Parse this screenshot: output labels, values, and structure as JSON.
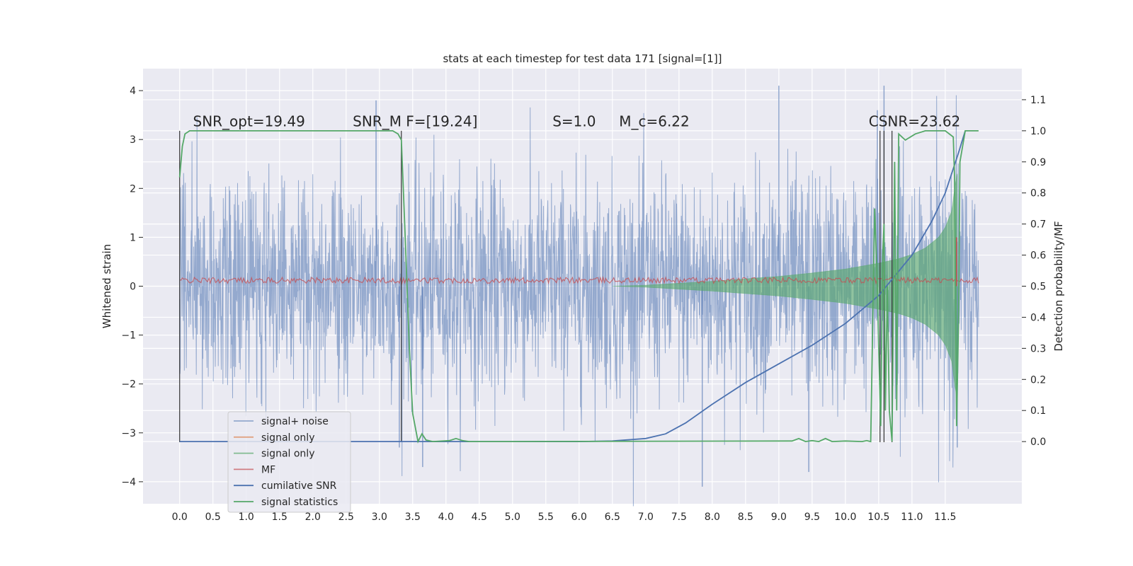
{
  "chart_data": {
    "type": "line",
    "title": "stats at each timestep for test data 171 [signal=[1]]",
    "xlabel": "",
    "ylabel": "Whitened strain",
    "y2label": "Detection probability/MF",
    "xlim": [
      -0.55,
      12.65
    ],
    "ylim": [
      -4.45,
      4.45
    ],
    "y2lim": [
      -0.2,
      1.2
    ],
    "xticks": [
      0.0,
      0.5,
      1.0,
      1.5,
      2.0,
      2.5,
      3.0,
      3.5,
      4.0,
      4.5,
      5.0,
      5.5,
      6.0,
      6.5,
      7.0,
      7.5,
      8.0,
      8.5,
      9.0,
      9.5,
      10.0,
      10.5,
      11.0,
      11.5
    ],
    "xtick_labels": [
      "0.0",
      "0.5",
      "1.0",
      "1.5",
      "2.0",
      "2.5",
      "3.0",
      "3.5",
      "4.0",
      "4.5",
      "5.0",
      "5.5",
      "6.0",
      "6.5",
      "7.0",
      "7.5",
      "8.0",
      "8.5",
      "9.0",
      "9.5",
      "10.0",
      "10.5",
      "11.0",
      "11.5"
    ],
    "yticks": [
      -4,
      -3,
      -2,
      -1,
      0,
      1,
      2,
      3,
      4
    ],
    "ytick_labels": [
      "−4",
      "−3",
      "−2",
      "−1",
      "0",
      "1",
      "2",
      "3",
      "4"
    ],
    "y2ticks": [
      0.0,
      0.1,
      0.2,
      0.3,
      0.4,
      0.5,
      0.6,
      0.7,
      0.8,
      0.9,
      1.0,
      1.1
    ],
    "y2tick_labels": [
      "0.0",
      "0.1",
      "0.2",
      "0.3",
      "0.4",
      "0.5",
      "0.6",
      "0.7",
      "0.8",
      "0.9",
      "1.0",
      "1.1"
    ],
    "grid": true,
    "legend_position": "lower-left",
    "annotations": [
      {
        "text": "SNR_opt=19.49",
        "x": 0.2,
        "y2": 1.015
      },
      {
        "text": "SNR_M F=[19.24]",
        "x": 2.6,
        "y2": 1.015
      },
      {
        "text": "S=1.0",
        "x": 5.6,
        "y2": 1.015
      },
      {
        "text": "M_c=6.22",
        "x": 6.6,
        "y2": 1.015
      },
      {
        "text": "CSNR=23.62",
        "x": 10.35,
        "y2": 1.015
      }
    ],
    "legend": [
      {
        "label": "signal+ noise",
        "color": "#4c72b0",
        "alpha": 0.55
      },
      {
        "label": "signal only",
        "color": "#dd8452",
        "alpha": 0.7
      },
      {
        "label": "signal only",
        "color": "#55a868",
        "alpha": 0.7
      },
      {
        "label": "MF",
        "color": "#c44e52",
        "alpha": 0.7
      },
      {
        "label": "cumilative SNR",
        "color": "#4c72b0",
        "alpha": 1.0
      },
      {
        "label": "signal statistics",
        "color": "#55a868",
        "alpha": 1.0
      }
    ],
    "noise": {
      "name": "signal+ noise",
      "color": "#4c72b0",
      "x_range": [
        0.0,
        12.0
      ],
      "typical_amplitude": 1.8,
      "spikes": [
        {
          "x": 2.95,
          "y": 3.8
        },
        {
          "x": 9.0,
          "y": 4.1
        },
        {
          "x": 10.58,
          "y": 4.1
        },
        {
          "x": 7.85,
          "y": -4.1
        },
        {
          "x": 3.65,
          "y": -3.7
        },
        {
          "x": 9.45,
          "y": -3.8
        },
        {
          "x": 11.68,
          "y": -3.3
        },
        {
          "x": 3.3,
          "y": -3.3
        },
        {
          "x": 10.48,
          "y": 3.6
        }
      ]
    },
    "signal_envelope": {
      "name": "signal only",
      "color": "#55a868",
      "x": [
        6.5,
        7.0,
        7.5,
        8.0,
        8.5,
        9.0,
        9.5,
        10.0,
        10.5,
        10.8,
        11.0,
        11.2,
        11.4,
        11.5,
        11.6,
        11.65,
        11.68
      ],
      "amplitude": [
        0.0,
        0.02,
        0.06,
        0.1,
        0.15,
        0.2,
        0.27,
        0.35,
        0.47,
        0.56,
        0.65,
        0.78,
        1.0,
        1.2,
        1.55,
        2.1,
        2.3
      ]
    },
    "mf": {
      "name": "MF",
      "color": "#c44e52",
      "baseline": 0.12,
      "spike": {
        "x": 11.67,
        "y": 1.0
      }
    },
    "cumulative_snr": {
      "name": "cumilative SNR",
      "color": "#4c72b0",
      "x": [
        0.0,
        3.0,
        6.0,
        6.5,
        7.0,
        7.3,
        7.6,
        8.0,
        8.5,
        9.0,
        9.5,
        10.0,
        10.5,
        11.0,
        11.3,
        11.5,
        11.7,
        11.8
      ],
      "y2": [
        0.0,
        0.0,
        0.0,
        0.002,
        0.01,
        0.025,
        0.06,
        0.12,
        0.19,
        0.25,
        0.31,
        0.38,
        0.47,
        0.6,
        0.71,
        0.8,
        0.93,
        1.0
      ]
    },
    "signal_statistics": {
      "name": "signal statistics",
      "color": "#55a868",
      "x": [
        0.0,
        0.04,
        0.08,
        0.15,
        0.3,
        3.2,
        3.28,
        3.33,
        3.38,
        3.45,
        3.5,
        3.58,
        3.64,
        3.7,
        3.8,
        4.05,
        4.15,
        4.25,
        4.35,
        5.0,
        9.2,
        9.3,
        9.4,
        9.5,
        9.6,
        9.7,
        9.8,
        10.0,
        10.25,
        10.32,
        10.38,
        10.44,
        10.48,
        10.5,
        10.53,
        10.56,
        10.58,
        10.6,
        10.63,
        10.66,
        10.7,
        10.74,
        10.77,
        10.8,
        10.9,
        11.05,
        11.2,
        11.5,
        11.62,
        11.64,
        11.67,
        11.7,
        11.72,
        11.8,
        12.0
      ],
      "y2": [
        0.85,
        0.95,
        0.99,
        1.0,
        1.0,
        1.0,
        0.99,
        0.97,
        0.7,
        0.3,
        0.09,
        0.0,
        0.025,
        0.005,
        0.0,
        0.003,
        0.01,
        0.003,
        0.0,
        0.0,
        0.002,
        0.01,
        0.0,
        0.003,
        0.0,
        0.01,
        0.0,
        0.002,
        0.0,
        0.003,
        0.0,
        0.75,
        0.5,
        0.3,
        0.05,
        0.6,
        0.7,
        0.1,
        0.5,
        0.1,
        0.0,
        0.9,
        0.1,
        0.99,
        0.97,
        0.99,
        1.0,
        1.0,
        0.98,
        0.85,
        0.05,
        0.4,
        0.9,
        1.0,
        1.0
      ]
    },
    "vertical_lines": [
      0.0,
      3.33,
      10.52,
      10.58,
      10.7
    ]
  }
}
